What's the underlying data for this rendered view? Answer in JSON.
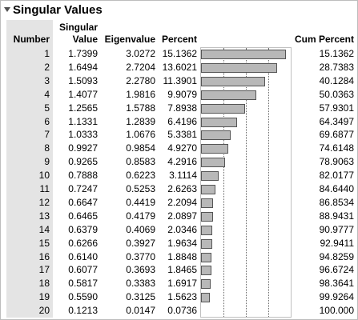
{
  "title": "Singular Values",
  "columns": {
    "number": "Number",
    "singular_line1": "Singular",
    "singular_line2": "Value",
    "eigenvalue": "Eigenvalue",
    "percent": "Percent",
    "cum_percent": "Cum Percent"
  },
  "rows": [
    {
      "number": "1",
      "singular": "1.7399",
      "eigen": "3.0272",
      "percent": "15.1362",
      "cum": "15.1362"
    },
    {
      "number": "2",
      "singular": "1.6494",
      "eigen": "2.7204",
      "percent": "13.6021",
      "cum": "28.7383"
    },
    {
      "number": "3",
      "singular": "1.5093",
      "eigen": "2.2780",
      "percent": "11.3901",
      "cum": "40.1284"
    },
    {
      "number": "4",
      "singular": "1.4077",
      "eigen": "1.9816",
      "percent": "9.9079",
      "cum": "50.0363"
    },
    {
      "number": "5",
      "singular": "1.2565",
      "eigen": "1.5788",
      "percent": "7.8938",
      "cum": "57.9301"
    },
    {
      "number": "6",
      "singular": "1.1331",
      "eigen": "1.2839",
      "percent": "6.4196",
      "cum": "64.3497"
    },
    {
      "number": "7",
      "singular": "1.0333",
      "eigen": "1.0676",
      "percent": "5.3381",
      "cum": "69.6877"
    },
    {
      "number": "8",
      "singular": "0.9927",
      "eigen": "0.9854",
      "percent": "4.9270",
      "cum": "74.6148"
    },
    {
      "number": "9",
      "singular": "0.9265",
      "eigen": "0.8583",
      "percent": "4.2916",
      "cum": "78.9063"
    },
    {
      "number": "10",
      "singular": "0.7888",
      "eigen": "0.6223",
      "percent": "3.1114",
      "cum": "82.0177"
    },
    {
      "number": "11",
      "singular": "0.7247",
      "eigen": "0.5253",
      "percent": "2.6263",
      "cum": "84.6440"
    },
    {
      "number": "12",
      "singular": "0.6647",
      "eigen": "0.4419",
      "percent": "2.2094",
      "cum": "86.8534"
    },
    {
      "number": "13",
      "singular": "0.6465",
      "eigen": "0.4179",
      "percent": "2.0897",
      "cum": "88.9431"
    },
    {
      "number": "14",
      "singular": "0.6379",
      "eigen": "0.4069",
      "percent": "2.0346",
      "cum": "90.9777"
    },
    {
      "number": "15",
      "singular": "0.6266",
      "eigen": "0.3927",
      "percent": "1.9634",
      "cum": "92.9411"
    },
    {
      "number": "16",
      "singular": "0.6140",
      "eigen": "0.3770",
      "percent": "1.8848",
      "cum": "94.8259"
    },
    {
      "number": "17",
      "singular": "0.6077",
      "eigen": "0.3693",
      "percent": "1.8465",
      "cum": "96.6724"
    },
    {
      "number": "18",
      "singular": "0.5817",
      "eigen": "0.3383",
      "percent": "1.6917",
      "cum": "98.3641"
    },
    {
      "number": "19",
      "singular": "0.5590",
      "eigen": "0.3125",
      "percent": "1.5623",
      "cum": "99.9264"
    },
    {
      "number": "20",
      "singular": "0.1213",
      "eigen": "0.0147",
      "percent": "0.0736",
      "cum": "100.000"
    }
  ],
  "bar_chart": {
    "percent_values": [
      15.1362,
      13.6021,
      11.3901,
      9.9079,
      7.8938,
      6.4196,
      5.3381,
      4.927,
      4.2916,
      3.1114,
      2.6263,
      2.2094,
      2.0897,
      2.0346,
      1.9634,
      1.8848,
      1.8465,
      1.6917,
      1.5623,
      0.0736
    ],
    "axis_max_percent": 16,
    "reference_lines_percent": [
      4,
      8,
      12
    ],
    "bar_color": "#b8b8b8"
  },
  "colors": {
    "number_column_bg": "#e4e4e4",
    "border": "#bdbdbd"
  },
  "icons": {
    "disclosure": "disclosure-triangle-icon"
  }
}
